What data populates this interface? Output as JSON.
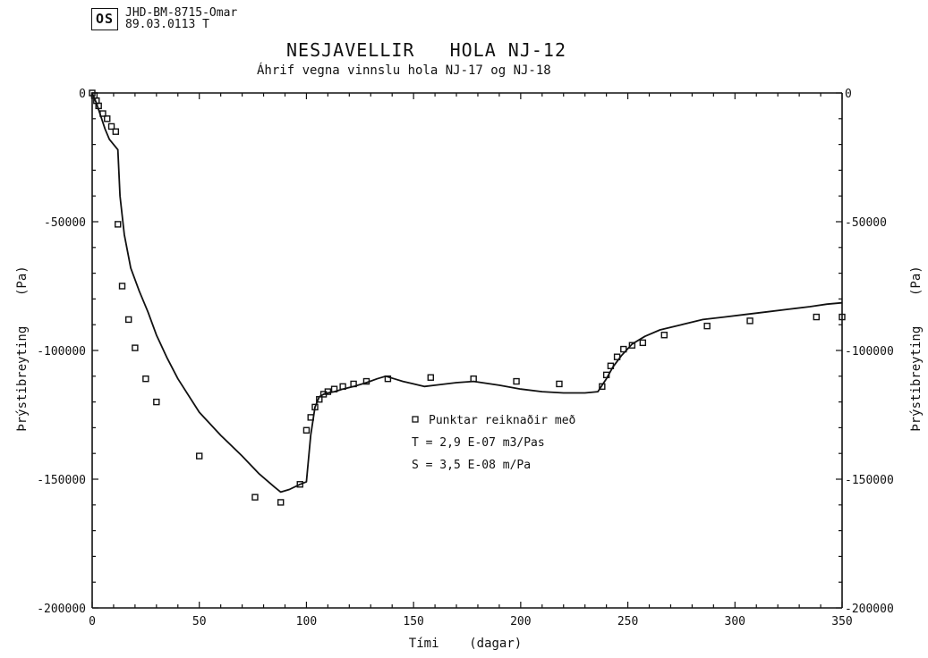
{
  "stamp": {
    "logo_text": "OS",
    "line1": "JHD-BM-8715-Omar",
    "line2": "89.03.0113  T"
  },
  "chart_data": {
    "type": "line",
    "title": "NESJAVELLIR   HOLA NJ-12",
    "subtitle": "Áhrif vegna vinnslu hola NJ-17 og NJ-18",
    "xlabel": "Tími    (dagar)",
    "ylabel": "Þrýstibreyting    (Pa)",
    "ylabel_right": "Þrýstibreyting    (Pa)",
    "xlim": [
      0,
      350
    ],
    "ylim": [
      -200000,
      0
    ],
    "x_ticks": [
      0,
      50,
      100,
      150,
      200,
      250,
      300,
      350
    ],
    "y_ticks": [
      0,
      -50000,
      -100000,
      -150000,
      -200000
    ],
    "x_tick_labels": [
      "0",
      "50",
      "100",
      "150",
      "200",
      "250",
      "300",
      "350"
    ],
    "y_tick_labels": [
      "0",
      "-50000",
      "-100000",
      "-150000",
      "-200000"
    ],
    "annotations": [
      "Punktar reiknaðir með",
      "T = 2,9 E-07 m3/Pas",
      "S = 3,5 E-08 m/Pa"
    ],
    "series": [
      {
        "type": "line",
        "x": [
          0,
          2,
          4,
          6,
          8,
          10,
          12,
          13,
          15,
          18,
          22,
          26,
          30,
          35,
          40,
          50,
          60,
          70,
          78,
          85,
          88,
          92,
          97,
          100,
          102,
          104,
          106,
          108,
          110,
          113,
          117,
          122,
          128,
          133,
          137,
          141,
          145,
          150,
          155,
          160,
          170,
          178,
          190,
          200,
          210,
          220,
          230,
          236,
          238,
          240,
          243,
          247,
          252,
          258,
          265,
          275,
          285,
          295,
          305,
          315,
          325,
          335,
          343,
          350
        ],
        "y": [
          0,
          -4000,
          -9000,
          -14000,
          -18000,
          -20000,
          -22000,
          -40000,
          -55000,
          -68000,
          -77000,
          -85000,
          -94000,
          -103000,
          -111000,
          -124000,
          -133000,
          -141000,
          -148000,
          -153000,
          -155000,
          -154000,
          -152000,
          -151000,
          -133000,
          -122000,
          -118000,
          -117000,
          -116500,
          -116000,
          -115000,
          -114000,
          -112500,
          -111000,
          -110000,
          -111000,
          -112000,
          -113000,
          -114000,
          -113500,
          -112500,
          -112000,
          -113500,
          -115000,
          -116000,
          -116500,
          -116500,
          -116000,
          -113500,
          -111000,
          -106500,
          -102000,
          -97500,
          -94500,
          -92000,
          -90000,
          -88000,
          -87000,
          -86000,
          -85000,
          -84000,
          -83000,
          -82000,
          -81500
        ]
      },
      {
        "name": "Punktar reiknaðir með",
        "type": "scatter",
        "marker": "square",
        "x": [
          0,
          1,
          2,
          3,
          5,
          7,
          9,
          11,
          12,
          14,
          17,
          20,
          25,
          30,
          50,
          76,
          88,
          97,
          100,
          102,
          104,
          106,
          108,
          110,
          113,
          117,
          122,
          128,
          138,
          158,
          178,
          198,
          218,
          238,
          240,
          242,
          245,
          248,
          252,
          257,
          267,
          287,
          307,
          338,
          350
        ],
        "y": [
          0,
          -1000,
          -3000,
          -5000,
          -8000,
          -10000,
          -13000,
          -15000,
          -51000,
          -75000,
          -88000,
          -99000,
          -111000,
          -120000,
          -141000,
          -157000,
          -159000,
          -152000,
          -131000,
          -126000,
          -122000,
          -119000,
          -117000,
          -116000,
          -115000,
          -114000,
          -113000,
          -112000,
          -111000,
          -110500,
          -111000,
          -112000,
          -113000,
          -114000,
          -109500,
          -106000,
          -102500,
          -99500,
          -98000,
          -97000,
          -94000,
          -90500,
          -88500,
          -87000,
          -87000
        ]
      }
    ],
    "grid": false
  }
}
